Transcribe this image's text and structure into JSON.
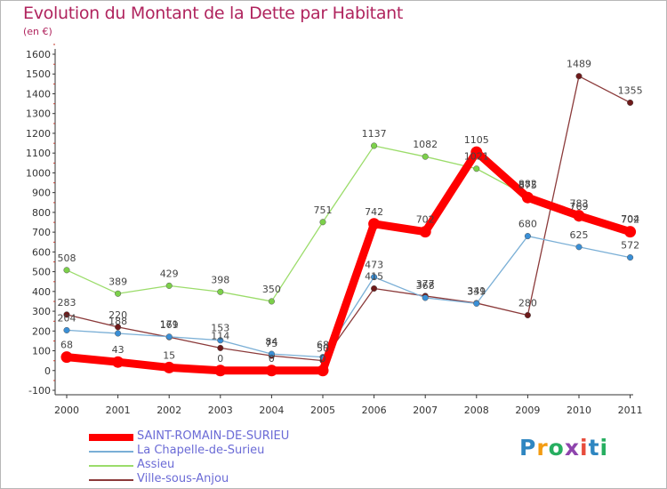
{
  "title": "Evolution du Montant de la Dette par Habitant",
  "subtitle": "(en €)",
  "logo": {
    "text": "Proxiti",
    "colors": [
      "#2e86c1",
      "#f39c12",
      "#27ae60",
      "#8e44ad",
      "#e74c3c",
      "#2e86c1",
      "#27ae60"
    ]
  },
  "chart_data": {
    "type": "line",
    "title": "Evolution du Montant de la Dette par Habitant",
    "subtitle": "(en €)",
    "x": [
      "2000",
      "2001",
      "2002",
      "2003",
      "2004",
      "2005",
      "2006",
      "2007",
      "2008",
      "2009",
      "2010",
      "2011"
    ],
    "ylim": [
      -100,
      1600
    ],
    "yticks": [
      -100,
      0,
      100,
      200,
      300,
      400,
      500,
      600,
      700,
      800,
      900,
      1000,
      1100,
      1200,
      1300,
      1400,
      1500,
      1600
    ],
    "grid": false,
    "legend_position": "bottom",
    "series": [
      {
        "name": "SAINT-ROMAIN-DE-SURIEU",
        "color": "#ff0000",
        "marker": "#ff0000",
        "bold": true,
        "values": [
          68,
          43,
          15,
          0,
          0,
          0,
          742,
          702,
          1105,
          875,
          783,
          702
        ]
      },
      {
        "name": "La Chapelle-de-Surieu",
        "color": "#7aafd6",
        "marker": "#3a8fd6",
        "bold": false,
        "values": [
          204,
          188,
          171,
          153,
          84,
          68,
          473,
          368,
          339,
          680,
          625,
          572
        ]
      },
      {
        "name": "Assieu",
        "color": "#9bdc6a",
        "marker": "#7cd04a",
        "bold": false,
        "values": [
          508,
          389,
          429,
          398,
          350,
          751,
          1137,
          1082,
          1021,
          882,
          769,
          704
        ]
      },
      {
        "name": "Ville-sous-Anjou",
        "color": "#8b3a3a",
        "marker": "#6e1a1a",
        "bold": false,
        "values": [
          283,
          220,
          169,
          114,
          75,
          50,
          415,
          377,
          341,
          280,
          1489,
          1355
        ]
      }
    ]
  }
}
